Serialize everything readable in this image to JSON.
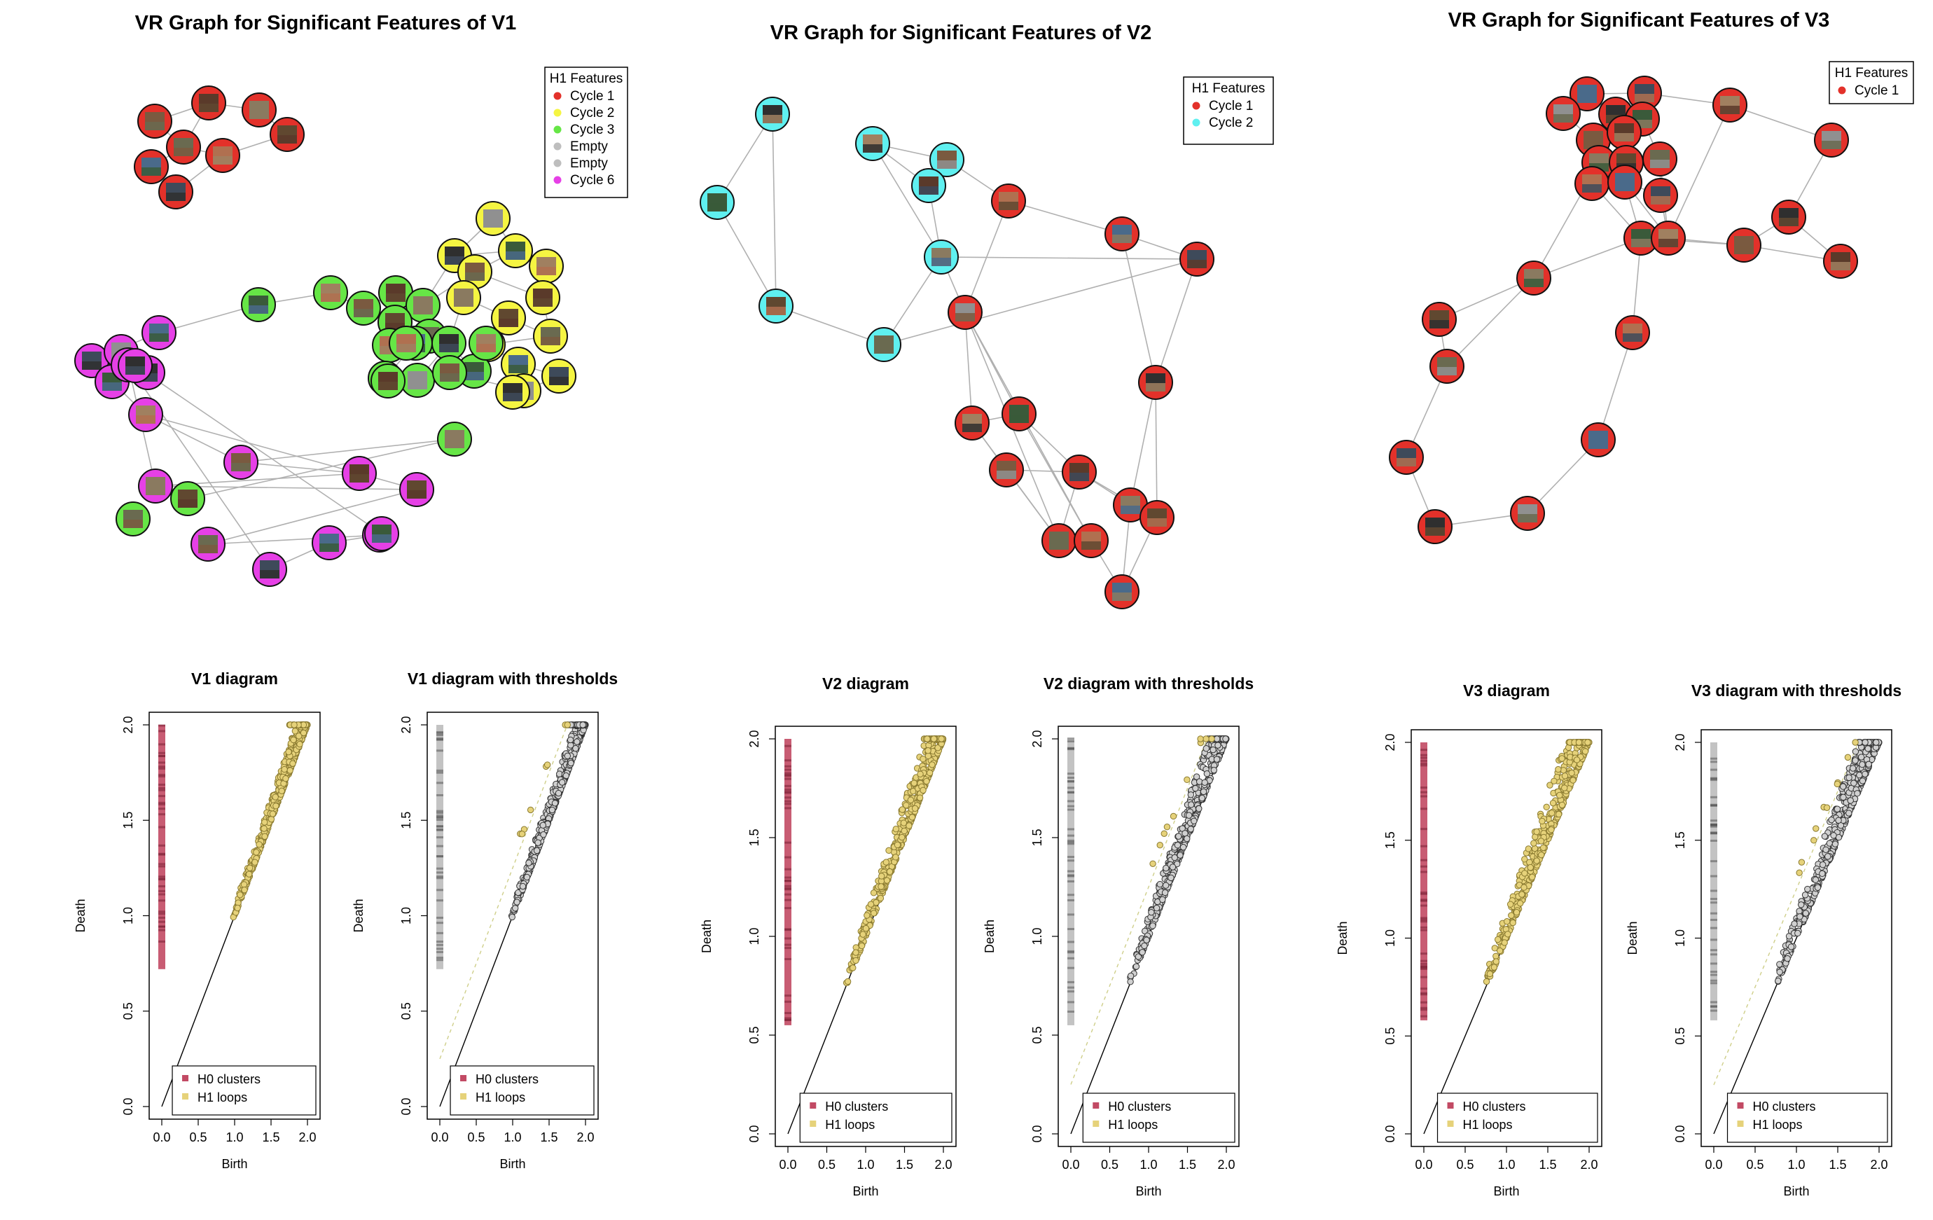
{
  "chart_data": [
    {
      "type": "network",
      "title": "VR Graph for Significant Features of V1",
      "legend": {
        "title": "H1 Features",
        "entries": [
          {
            "label": "Cycle 1",
            "color": "#e3312a"
          },
          {
            "label": "Cycle 2",
            "color": "#f5f542"
          },
          {
            "label": "Cycle 3",
            "color": "#66e646"
          },
          {
            "label": "Empty",
            "color": "#bebebe"
          },
          {
            "label": "Empty",
            "color": "#bebebe"
          },
          {
            "label": "Cycle 6",
            "color": "#e640e6"
          }
        ],
        "placement": "top-right"
      },
      "node_counts": {
        "Cycle 1": 8,
        "Cycle 2": 14,
        "Cycle 3": 20,
        "Cycle 6": 17
      }
    },
    {
      "type": "network",
      "title": "VR Graph for Significant Features of V2",
      "legend": {
        "title": "H1 Features",
        "entries": [
          {
            "label": "Cycle 1",
            "color": "#e3312a"
          },
          {
            "label": "Cycle 2",
            "color": "#5ff0f0"
          }
        ],
        "placement": "top-right"
      },
      "node_counts": {
        "Cycle 1": 17,
        "Cycle 2": 8
      }
    },
    {
      "type": "network",
      "title": "VR Graph for Significant Features of V3",
      "legend": {
        "title": "H1 Features",
        "entries": [
          {
            "label": "Cycle 1",
            "color": "#e3312a"
          }
        ],
        "placement": "top-right"
      },
      "node_counts": {
        "Cycle 1": 28
      }
    },
    {
      "type": "scatter",
      "title": "V1  diagram",
      "xlabel": "Birth",
      "ylabel": "Death",
      "xlim": [
        0,
        2
      ],
      "ylim": [
        0,
        2
      ],
      "xticks": [
        "0.0",
        "0.5",
        "1.0",
        "1.5",
        "2.0"
      ],
      "yticks": [
        "0.0",
        "0.5",
        "1.0",
        "1.5",
        "2.0"
      ],
      "series": [
        {
          "name": "H0  clusters",
          "color": "#c24a64",
          "x_value": 0.0,
          "death_range": [
            0.72,
            2.0
          ]
        },
        {
          "name": "H1  loops",
          "color": "#e6d27a",
          "birth_range": [
            0.97,
            2.0
          ],
          "death_range": [
            0.97,
            2.0
          ]
        }
      ],
      "diagonal": true,
      "legend_placement": "bottom-right"
    },
    {
      "type": "scatter",
      "title": "V1  diagram with thresholds",
      "xlabel": "Birth",
      "ylabel": "Death",
      "xlim": [
        0,
        2
      ],
      "ylim": [
        0,
        2
      ],
      "xticks": [
        "0.0",
        "0.5",
        "1.0",
        "1.5",
        "2.0"
      ],
      "yticks": [
        "0.0",
        "0.5",
        "1.0",
        "1.5",
        "2.0"
      ],
      "series": [
        {
          "name": "H0  clusters",
          "color": "#c24a64"
        },
        {
          "name": "H1  loops",
          "color": "#e6d27a"
        }
      ],
      "diagonal": true,
      "threshold_line": true,
      "legend_placement": "bottom-right"
    },
    {
      "type": "scatter",
      "title": "V2  diagram",
      "xlabel": "Birth",
      "ylabel": "Death",
      "xlim": [
        0,
        2
      ],
      "ylim": [
        0,
        2
      ],
      "xticks": [
        "0.0",
        "0.5",
        "1.0",
        "1.5",
        "2.0"
      ],
      "yticks": [
        "0.0",
        "0.5",
        "1.0",
        "1.5",
        "2.0"
      ],
      "series": [
        {
          "name": "H0  clusters",
          "color": "#c24a64",
          "x_value": 0.0,
          "death_range": [
            0.55,
            2.0
          ]
        },
        {
          "name": "H1  loops",
          "color": "#e6d27a",
          "birth_range": [
            0.75,
            2.0
          ],
          "death_range": [
            0.78,
            2.0
          ]
        }
      ],
      "diagonal": true,
      "legend_placement": "bottom-right"
    },
    {
      "type": "scatter",
      "title": "V2  diagram with thresholds",
      "xlabel": "Birth",
      "ylabel": "Death",
      "xlim": [
        0,
        2
      ],
      "ylim": [
        0,
        2
      ],
      "xticks": [
        "0.0",
        "0.5",
        "1.0",
        "1.5",
        "2.0"
      ],
      "yticks": [
        "0.0",
        "0.5",
        "1.0",
        "1.5",
        "2.0"
      ],
      "series": [
        {
          "name": "H0  clusters",
          "color": "#c24a64"
        },
        {
          "name": "H1  loops",
          "color": "#e6d27a"
        }
      ],
      "diagonal": true,
      "threshold_line": true,
      "legend_placement": "bottom-right"
    },
    {
      "type": "scatter",
      "title": "V3  diagram",
      "xlabel": "Birth",
      "ylabel": "Death",
      "xlim": [
        0,
        2
      ],
      "ylim": [
        0,
        2
      ],
      "xticks": [
        "0.0",
        "0.5",
        "1.0",
        "1.5",
        "2.0"
      ],
      "yticks": [
        "0.0",
        "0.5",
        "1.0",
        "1.5",
        "2.0"
      ],
      "series": [
        {
          "name": "H0  clusters",
          "color": "#c24a64",
          "x_value": 0.0,
          "death_range": [
            0.58,
            2.0
          ]
        },
        {
          "name": "H1  loops",
          "color": "#e6d27a",
          "birth_range": [
            0.75,
            2.0
          ],
          "death_range": [
            0.78,
            2.0
          ]
        }
      ],
      "diagonal": true,
      "legend_placement": "bottom-right"
    },
    {
      "type": "scatter",
      "title": "V3  diagram with thresholds",
      "xlabel": "Birth",
      "ylabel": "Death",
      "xlim": [
        0,
        2
      ],
      "ylim": [
        0,
        2
      ],
      "xticks": [
        "0.0",
        "0.5",
        "1.0",
        "1.5",
        "2.0"
      ],
      "yticks": [
        "0.0",
        "0.5",
        "1.0",
        "1.5",
        "2.0"
      ],
      "series": [
        {
          "name": "H0  clusters",
          "color": "#c24a64"
        },
        {
          "name": "H1  loops",
          "color": "#e6d27a"
        }
      ],
      "diagonal": true,
      "threshold_line": true,
      "legend_placement": "bottom-right"
    }
  ]
}
